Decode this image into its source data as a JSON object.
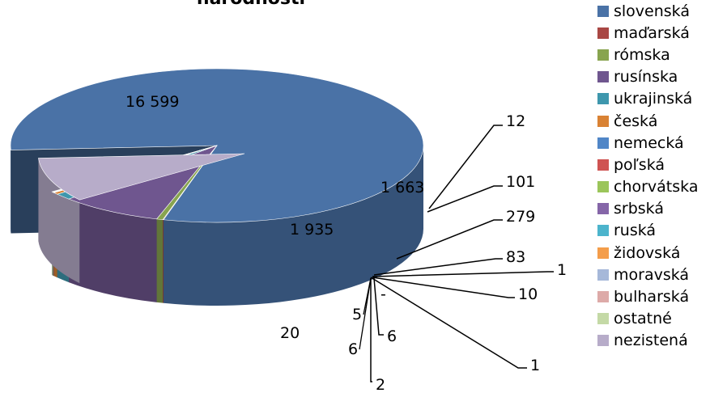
{
  "chart_data": {
    "type": "pie",
    "title": "národnosti",
    "categories": [
      "slovenská",
      "maďarská",
      "rómska",
      "rusínska",
      "ukrajinská",
      "česká",
      "nemecká",
      "poľská",
      "chorvátska",
      "srbská",
      "ruská",
      "židovská",
      "moravská",
      "bulharská",
      "ostatné",
      "nezistená"
    ],
    "colors": [
      "#4a72a6",
      "#a94744",
      "#88a44f",
      "#6f568f",
      "#3e97ad",
      "#d98234",
      "#5086c7",
      "#cf5452",
      "#9bc55a",
      "#8566a8",
      "#4cb4cc",
      "#f49d4a",
      "#a6b8d9",
      "#ddaaa8",
      "#c4d9a6",
      "#b7acc9"
    ],
    "values": [
      16599,
      12,
      101,
      1663,
      279,
      83,
      1,
      10,
      1,
      2,
      6,
      6,
      5,
      0,
      20,
      1935
    ],
    "labels": [
      "16 599",
      "12",
      "101",
      "1 663",
      "279",
      "83",
      "1",
      "10",
      "1",
      "2",
      "6",
      "6",
      "5",
      "-",
      "20",
      "1 935"
    ],
    "legend_position": "right"
  }
}
